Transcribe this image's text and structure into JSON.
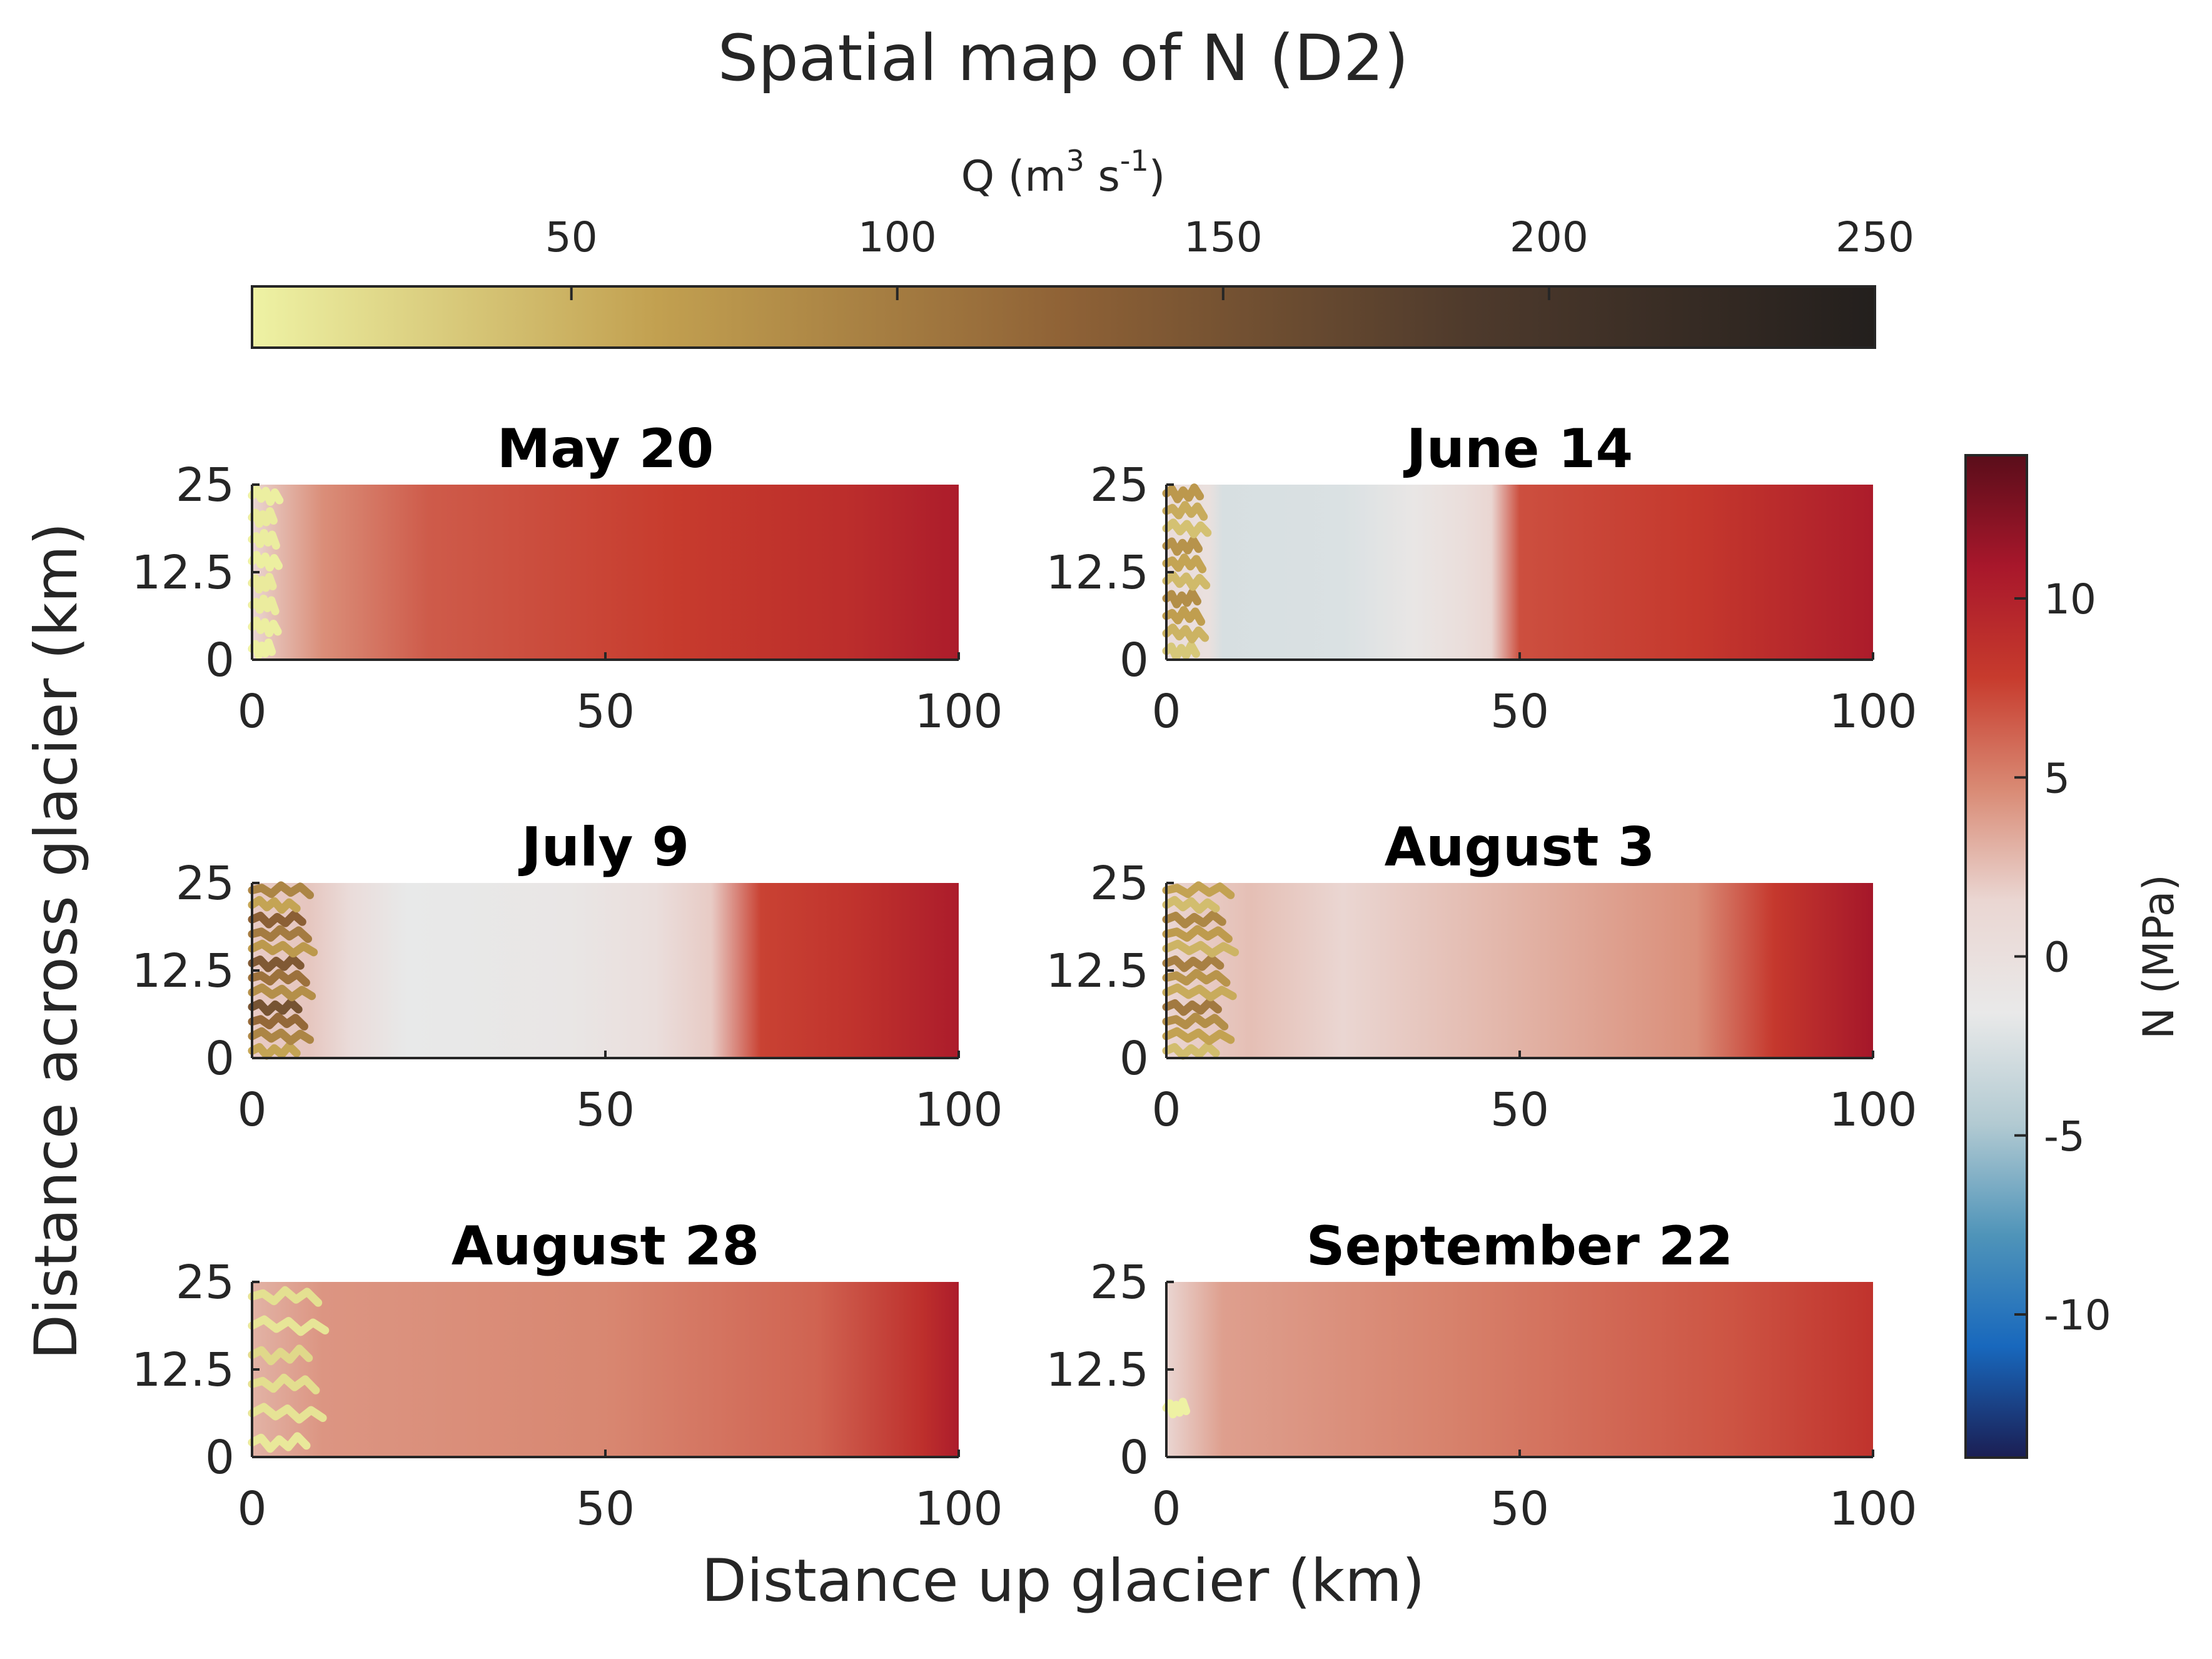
{
  "title": "Spatial map of N (D2)",
  "xlabel": "Distance up glacier (km)",
  "ylabel": "Distance across glacier (km)",
  "colorbar_q": {
    "label_base": "Q (m",
    "label_sup1": "3",
    "label_mid": " s",
    "label_sup2": "-1",
    "label_end": ")",
    "range": [
      1,
      250
    ],
    "ticks": [
      50,
      100,
      150,
      200,
      250
    ],
    "colors": [
      "#eef2a4",
      "#c2a050",
      "#8f6236",
      "#4e3a2c",
      "#231f1d"
    ],
    "orientation": "horizontal",
    "placement": "top"
  },
  "colorbar_n": {
    "label": "N (MPa)",
    "range": [
      -14,
      14
    ],
    "ticks": [
      10,
      5,
      0,
      -5,
      -10
    ],
    "colors": [
      "#5a0d1a",
      "#a8172b",
      "#c73b2d",
      "#d98a74",
      "#ead6d2",
      "#e9e9e9",
      "#b2cad2",
      "#4f94b9",
      "#1868bd",
      "#1b1e53"
    ],
    "orientation": "vertical",
    "placement": "right"
  },
  "chart_data": [
    {
      "type": "heatmap",
      "title": "May 20",
      "xlim": [
        0,
        100
      ],
      "ylim": [
        0,
        25
      ],
      "xticks": [
        "0",
        "50",
        "100"
      ],
      "yticks": [
        "0",
        "12.5",
        "25"
      ],
      "n_profile": [
        {
          "x": 0,
          "n": 1.2
        },
        {
          "x": 3,
          "n": 2.5
        },
        {
          "x": 10,
          "n": 4.5
        },
        {
          "x": 25,
          "n": 6.5
        },
        {
          "x": 60,
          "n": 7.8
        },
        {
          "x": 85,
          "n": 9
        },
        {
          "x": 100,
          "n": 10.5
        }
      ],
      "channels": {
        "n": 8,
        "x_extent": 4,
        "q": 5
      }
    },
    {
      "type": "heatmap",
      "title": "June 14",
      "xlim": [
        0,
        100
      ],
      "ylim": [
        0,
        25
      ],
      "xticks": [
        "0",
        "50",
        "100"
      ],
      "yticks": [
        "0",
        "12.5",
        "25"
      ],
      "n_profile": [
        {
          "x": 0,
          "n": 0.5
        },
        {
          "x": 6,
          "n": 0
        },
        {
          "x": 8,
          "n": -2.6
        },
        {
          "x": 25,
          "n": -2.4
        },
        {
          "x": 35,
          "n": -1
        },
        {
          "x": 42,
          "n": 0.3
        },
        {
          "x": 46,
          "n": 1.5
        },
        {
          "x": 50,
          "n": 7
        },
        {
          "x": 75,
          "n": 8
        },
        {
          "x": 100,
          "n": 10.5
        }
      ],
      "channels": {
        "n": 10,
        "x_extent": 6,
        "q": 60
      }
    },
    {
      "type": "heatmap",
      "title": "July 9",
      "xlim": [
        0,
        100
      ],
      "ylim": [
        0,
        25
      ],
      "xticks": [
        "0",
        "50",
        "100"
      ],
      "yticks": [
        "0",
        "12.5",
        "25"
      ],
      "n_profile": [
        {
          "x": 0,
          "n": 2
        },
        {
          "x": 8,
          "n": 2.2
        },
        {
          "x": 14,
          "n": 0.5
        },
        {
          "x": 22,
          "n": -1.6
        },
        {
          "x": 45,
          "n": -1
        },
        {
          "x": 57,
          "n": 0.2
        },
        {
          "x": 65,
          "n": 2
        },
        {
          "x": 72,
          "n": 7.5
        },
        {
          "x": 85,
          "n": 8.5
        },
        {
          "x": 100,
          "n": 10.5
        }
      ],
      "channels": {
        "n": 12,
        "x_extent": 9,
        "q": 110
      }
    },
    {
      "type": "heatmap",
      "title": "August 3",
      "xlim": [
        0,
        100
      ],
      "ylim": [
        0,
        25
      ],
      "xticks": [
        "0",
        "50",
        "100"
      ],
      "yticks": [
        "0",
        "12.5",
        "25"
      ],
      "n_profile": [
        {
          "x": 0,
          "n": 1.5
        },
        {
          "x": 12,
          "n": 2.5
        },
        {
          "x": 25,
          "n": 1.5
        },
        {
          "x": 50,
          "n": 3
        },
        {
          "x": 75,
          "n": 4.5
        },
        {
          "x": 86,
          "n": 8
        },
        {
          "x": 100,
          "n": 11
        }
      ],
      "channels": {
        "n": 12,
        "x_extent": 10,
        "q": 75
      }
    },
    {
      "type": "heatmap",
      "title": "August 28",
      "xlim": [
        0,
        100
      ],
      "ylim": [
        0,
        25
      ],
      "xticks": [
        "0",
        "50",
        "100"
      ],
      "yticks": [
        "0",
        "12.5",
        "25"
      ],
      "n_profile": [
        {
          "x": 0,
          "n": 3
        },
        {
          "x": 10,
          "n": 4.2
        },
        {
          "x": 50,
          "n": 4.8
        },
        {
          "x": 80,
          "n": 6.2
        },
        {
          "x": 95,
          "n": 8.8
        },
        {
          "x": 100,
          "n": 10.5
        }
      ],
      "channels": {
        "n": 6,
        "x_extent": 11,
        "q": 15
      }
    },
    {
      "type": "heatmap",
      "title": "September 22",
      "xlim": [
        0,
        100
      ],
      "ylim": [
        0,
        25
      ],
      "xticks": [
        "0",
        "50",
        "100"
      ],
      "yticks": [
        "0",
        "12.5",
        "25"
      ],
      "n_profile": [
        {
          "x": 0,
          "n": 1.5
        },
        {
          "x": 8,
          "n": 3.8
        },
        {
          "x": 40,
          "n": 5
        },
        {
          "x": 80,
          "n": 6.8
        },
        {
          "x": 100,
          "n": 8.5
        }
      ],
      "channels": {
        "n": 1,
        "x_extent": 4,
        "q": 3
      }
    }
  ]
}
